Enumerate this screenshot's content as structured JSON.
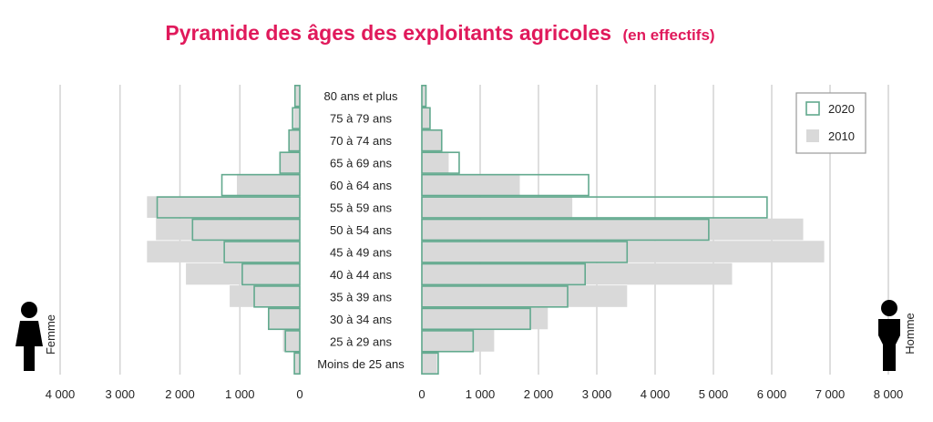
{
  "chart_data": {
    "type": "bar",
    "orientation": "horizontal-pyramid",
    "title": "Pyramide des âges des exploitants agricoles",
    "subtitle": "(en effectifs)",
    "categories": [
      "80 ans et plus",
      "75 à 79 ans",
      "70 à 74 ans",
      "65 à 69 ans",
      "60 à 64 ans",
      "55 à 59 ans",
      "50 à 54 ans",
      "45 à 49 ans",
      "40 à 44 ans",
      "35 à 39 ans",
      "30 à 34 ans",
      "25 à 29 ans",
      "Moins de 25 ans"
    ],
    "left_side": {
      "label": "Femme",
      "xlim": [
        0,
        4000
      ],
      "ticks": [
        "4 000",
        "3 000",
        "2 000",
        "1 000",
        "0"
      ],
      "series": [
        {
          "name": "2010",
          "values": [
            80,
            100,
            180,
            320,
            1050,
            2550,
            2400,
            2550,
            1900,
            1170,
            530,
            280,
            100
          ]
        },
        {
          "name": "2020",
          "values": [
            80,
            120,
            180,
            330,
            1300,
            2380,
            1790,
            1260,
            960,
            760,
            520,
            240,
            90
          ]
        }
      ]
    },
    "right_side": {
      "label": "Homme",
      "xlim": [
        0,
        8000
      ],
      "ticks": [
        "0",
        "1 000",
        "2 000",
        "3 000",
        "4 000",
        "5 000",
        "6 000",
        "7 000",
        "8 000"
      ],
      "series": [
        {
          "name": "2010",
          "values": [
            60,
            140,
            340,
            460,
            1680,
            2580,
            6540,
            6900,
            5320,
            3520,
            2160,
            1240,
            260
          ]
        },
        {
          "name": "2020",
          "values": [
            70,
            140,
            340,
            640,
            2860,
            5920,
            4920,
            3520,
            2800,
            2500,
            1860,
            880,
            280
          ]
        }
      ]
    },
    "legend": {
      "position": "top-right",
      "entries": [
        {
          "name": "2020",
          "style": "outline"
        },
        {
          "name": "2010",
          "style": "filled"
        }
      ]
    },
    "grid": true
  },
  "colors": {
    "title": "#e0195b",
    "bar_2010": "#d9d9d9",
    "bar_2020_outline": "#62a98e",
    "grid": "#d4d4d4",
    "icon": "#000000"
  },
  "icons": {
    "left": "woman-icon",
    "right": "man-icon"
  }
}
